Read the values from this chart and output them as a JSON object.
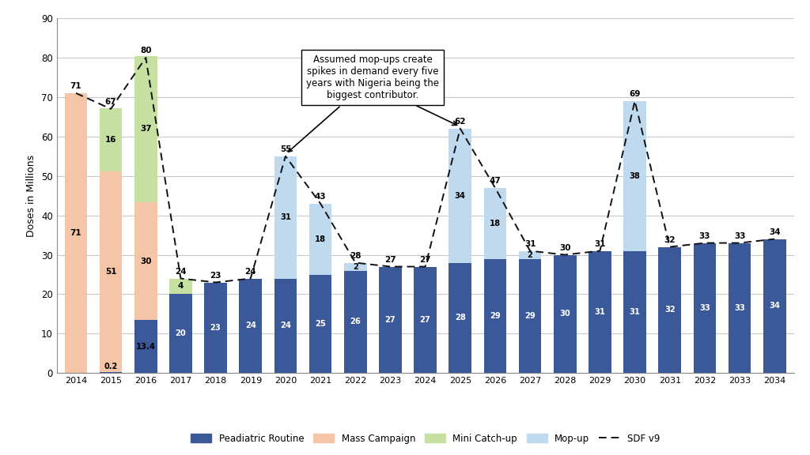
{
  "years": [
    2014,
    2015,
    2016,
    2017,
    2018,
    2019,
    2020,
    2021,
    2022,
    2023,
    2024,
    2025,
    2026,
    2027,
    2028,
    2029,
    2030,
    2031,
    2032,
    2033,
    2034
  ],
  "pediatric_routine": [
    0,
    0.2,
    13.4,
    20,
    23,
    24,
    24,
    25,
    26,
    27,
    27,
    28,
    29,
    29,
    30,
    31,
    31,
    32,
    33,
    33,
    34
  ],
  "mass_campaign": [
    71,
    51,
    30,
    0,
    0,
    0,
    0,
    0,
    0,
    0,
    0,
    0,
    0,
    0,
    0,
    0,
    0,
    0,
    0,
    0,
    0
  ],
  "mini_catchup": [
    0,
    16,
    37,
    4,
    0,
    0,
    0,
    0,
    0,
    0,
    0,
    0,
    0,
    0,
    0,
    0,
    0,
    0,
    0,
    0,
    0
  ],
  "mopup": [
    0,
    0,
    0,
    0,
    0,
    0,
    31,
    18,
    2,
    0,
    0,
    34,
    18,
    2,
    0,
    0,
    38,
    0,
    0,
    0,
    0
  ],
  "sdf_v9": [
    71,
    67,
    80,
    24,
    23,
    24,
    55,
    43,
    28,
    27,
    27,
    62,
    47,
    31,
    30,
    31,
    69,
    32,
    33,
    33,
    34
  ],
  "pediatric_labels": [
    "",
    "0.2",
    "13.4",
    "20",
    "23",
    "24",
    "24",
    "25",
    "26",
    "27",
    "27",
    "28",
    "29",
    "29",
    "30",
    "31",
    "31",
    "32",
    "33",
    "33",
    "34"
  ],
  "mass_labels": [
    "71",
    "51",
    "30",
    "",
    "",
    "",
    "",
    "",
    "",
    "",
    "",
    "",
    "",
    "",
    "",
    "",
    "",
    "",
    "",
    "",
    ""
  ],
  "mini_labels": [
    "",
    "16",
    "37",
    "4",
    "",
    "",
    "",
    "",
    "",
    "",
    "",
    "",
    "",
    "",
    "",
    "",
    "",
    "",
    "",
    "",
    ""
  ],
  "mopup_labels": [
    "",
    "",
    "",
    "",
    "",
    "",
    "31",
    "18",
    "2",
    "",
    "",
    "34",
    "18",
    "2",
    "",
    "",
    "38",
    "",
    "",
    "",
    ""
  ],
  "top_labels": [
    "71",
    "67",
    "80",
    "24",
    "23",
    "24",
    "55",
    "43",
    "28",
    "27",
    "27",
    "62",
    "47",
    "31",
    "30",
    "31",
    "69",
    "32",
    "33",
    "33",
    "34"
  ],
  "color_pediatric": "#3B5998",
  "color_mass_campaign": "#F5C5A8",
  "color_mini_catchup": "#C5E0A0",
  "color_mopup": "#BFD9EE",
  "color_sdf": "#111111",
  "ylim": [
    0,
    90
  ],
  "yticks": [
    0,
    10,
    20,
    30,
    40,
    50,
    60,
    70,
    80,
    90
  ],
  "ylabel": "Doses in Millions",
  "annotation_text": "Assumed mop-ups create\nspikes in demand every five\nyears with Nigeria being the\nbiggest contributor.",
  "bg_color": "#FFFFFF",
  "grid_color": "#C8C8C8"
}
